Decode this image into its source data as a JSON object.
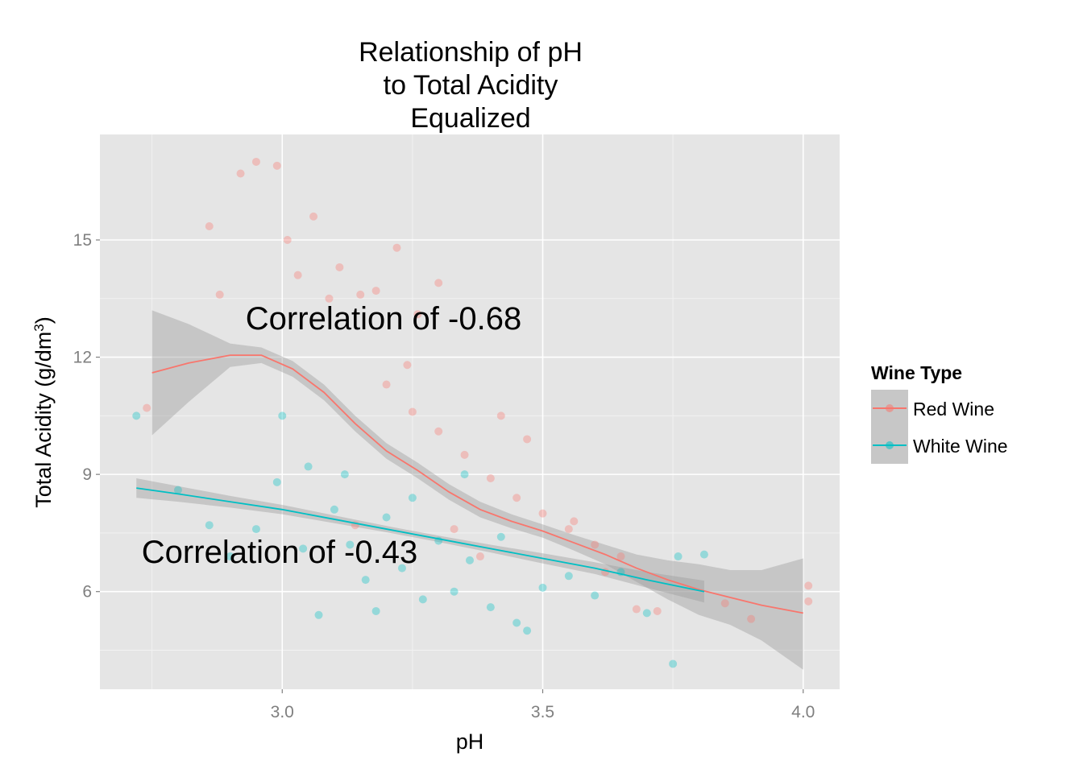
{
  "chart_data": {
    "type": "scatter",
    "title": [
      "Relationship of pH",
      "to Total Acidity",
      "Equalized"
    ],
    "xlabel": "pH",
    "ylabel": "Total Acidity (g/dm³)",
    "xlim": [
      2.65,
      4.07
    ],
    "ylim": [
      3.5,
      17.7
    ],
    "x_ticks": [
      3.0,
      3.5,
      4.0
    ],
    "x_tick_labels": [
      "3.0",
      "3.5",
      "4.0"
    ],
    "y_ticks": [
      6,
      9,
      12,
      15
    ],
    "y_tick_labels": [
      "6",
      "9",
      "12",
      "15"
    ],
    "grid": true,
    "panel_background": "#e5e5e5",
    "legend": {
      "title": "Wine Type",
      "position": "right",
      "entries": [
        "Red Wine",
        "White Wine"
      ]
    },
    "annotations": [
      {
        "text": "Correlation of -0.68",
        "x": 3.2,
        "y": 12.9
      },
      {
        "text": "Correlation of -0.43",
        "x": 3.0,
        "y": 6.9
      }
    ],
    "series": [
      {
        "name": "Red Wine",
        "color": "#f8766d",
        "point_alpha": 0.35,
        "points_sample": [
          [
            2.74,
            10.7
          ],
          [
            2.86,
            15.35
          ],
          [
            2.88,
            13.6
          ],
          [
            2.92,
            16.7
          ],
          [
            2.95,
            17.0
          ],
          [
            2.99,
            16.9
          ],
          [
            3.01,
            15.0
          ],
          [
            3.03,
            14.1
          ],
          [
            3.06,
            15.6
          ],
          [
            3.09,
            13.5
          ],
          [
            3.11,
            14.3
          ],
          [
            3.15,
            13.6
          ],
          [
            3.18,
            13.7
          ],
          [
            3.22,
            14.8
          ],
          [
            3.26,
            13.1
          ],
          [
            3.3,
            13.9
          ],
          [
            3.2,
            11.3
          ],
          [
            3.25,
            10.6
          ],
          [
            3.3,
            10.1
          ],
          [
            3.35,
            9.5
          ],
          [
            3.4,
            8.9
          ],
          [
            3.45,
            8.4
          ],
          [
            3.5,
            8.0
          ],
          [
            3.55,
            7.6
          ],
          [
            3.6,
            7.2
          ],
          [
            3.65,
            6.9
          ],
          [
            3.68,
            5.55
          ],
          [
            3.72,
            5.5
          ],
          [
            3.85,
            5.7
          ],
          [
            3.9,
            5.3
          ],
          [
            4.01,
            6.15
          ],
          [
            4.01,
            5.75
          ],
          [
            3.56,
            7.8
          ],
          [
            3.62,
            6.5
          ],
          [
            3.33,
            7.6
          ],
          [
            3.38,
            6.9
          ],
          [
            3.14,
            7.7
          ],
          [
            3.24,
            11.8
          ],
          [
            3.42,
            10.5
          ],
          [
            3.47,
            9.9
          ]
        ],
        "smooth_line": [
          [
            2.75,
            11.6
          ],
          [
            2.82,
            11.85
          ],
          [
            2.9,
            12.05
          ],
          [
            2.96,
            12.05
          ],
          [
            3.02,
            11.7
          ],
          [
            3.08,
            11.1
          ],
          [
            3.14,
            10.3
          ],
          [
            3.2,
            9.6
          ],
          [
            3.26,
            9.1
          ],
          [
            3.32,
            8.55
          ],
          [
            3.38,
            8.1
          ],
          [
            3.44,
            7.8
          ],
          [
            3.5,
            7.55
          ],
          [
            3.56,
            7.25
          ],
          [
            3.62,
            6.95
          ],
          [
            3.68,
            6.6
          ],
          [
            3.74,
            6.3
          ],
          [
            3.8,
            6.05
          ],
          [
            3.86,
            5.85
          ],
          [
            3.92,
            5.65
          ],
          [
            4.0,
            5.45
          ]
        ],
        "ci_upper": [
          [
            2.75,
            13.2
          ],
          [
            2.82,
            12.85
          ],
          [
            2.9,
            12.35
          ],
          [
            2.96,
            12.25
          ],
          [
            3.02,
            11.9
          ],
          [
            3.08,
            11.3
          ],
          [
            3.14,
            10.5
          ],
          [
            3.2,
            9.8
          ],
          [
            3.26,
            9.3
          ],
          [
            3.32,
            8.75
          ],
          [
            3.38,
            8.3
          ],
          [
            3.44,
            7.98
          ],
          [
            3.5,
            7.72
          ],
          [
            3.56,
            7.45
          ],
          [
            3.62,
            7.2
          ],
          [
            3.68,
            6.95
          ],
          [
            3.74,
            6.8
          ],
          [
            3.8,
            6.7
          ],
          [
            3.86,
            6.55
          ],
          [
            3.92,
            6.55
          ],
          [
            4.0,
            6.85
          ]
        ],
        "ci_lower": [
          [
            2.75,
            10.0
          ],
          [
            2.82,
            10.85
          ],
          [
            2.9,
            11.75
          ],
          [
            2.96,
            11.85
          ],
          [
            3.02,
            11.5
          ],
          [
            3.08,
            10.9
          ],
          [
            3.14,
            10.1
          ],
          [
            3.2,
            9.4
          ],
          [
            3.26,
            8.9
          ],
          [
            3.32,
            8.35
          ],
          [
            3.38,
            7.9
          ],
          [
            3.44,
            7.62
          ],
          [
            3.5,
            7.38
          ],
          [
            3.56,
            7.05
          ],
          [
            3.62,
            6.7
          ],
          [
            3.68,
            6.25
          ],
          [
            3.74,
            5.8
          ],
          [
            3.8,
            5.4
          ],
          [
            3.86,
            5.15
          ],
          [
            3.92,
            4.75
          ],
          [
            4.0,
            4.0
          ]
        ]
      },
      {
        "name": "White Wine",
        "color": "#00bfc4",
        "point_alpha": 0.35,
        "points_sample": [
          [
            2.72,
            10.5
          ],
          [
            2.8,
            8.6
          ],
          [
            2.86,
            7.7
          ],
          [
            2.9,
            6.9
          ],
          [
            2.95,
            7.6
          ],
          [
            2.99,
            8.8
          ],
          [
            3.0,
            10.5
          ],
          [
            3.04,
            7.1
          ],
          [
            3.07,
            5.4
          ],
          [
            3.1,
            8.1
          ],
          [
            3.13,
            7.2
          ],
          [
            3.16,
            6.3
          ],
          [
            3.18,
            5.5
          ],
          [
            3.2,
            7.9
          ],
          [
            3.23,
            6.6
          ],
          [
            3.27,
            5.8
          ],
          [
            3.3,
            7.3
          ],
          [
            3.33,
            6.0
          ],
          [
            3.36,
            6.8
          ],
          [
            3.4,
            5.6
          ],
          [
            3.45,
            5.2
          ],
          [
            3.47,
            5.0
          ],
          [
            3.5,
            6.1
          ],
          [
            3.55,
            6.4
          ],
          [
            3.6,
            5.9
          ],
          [
            3.65,
            6.5
          ],
          [
            3.7,
            5.45
          ],
          [
            3.75,
            4.15
          ],
          [
            3.76,
            6.9
          ],
          [
            3.81,
            6.95
          ],
          [
            3.05,
            9.2
          ],
          [
            3.12,
            9.0
          ],
          [
            3.25,
            8.4
          ],
          [
            3.35,
            9.0
          ],
          [
            3.42,
            7.4
          ]
        ],
        "smooth_line": [
          [
            2.72,
            8.65
          ],
          [
            2.8,
            8.5
          ],
          [
            2.9,
            8.3
          ],
          [
            3.0,
            8.1
          ],
          [
            3.1,
            7.85
          ],
          [
            3.2,
            7.6
          ],
          [
            3.3,
            7.35
          ],
          [
            3.4,
            7.1
          ],
          [
            3.5,
            6.85
          ],
          [
            3.6,
            6.6
          ],
          [
            3.7,
            6.3
          ],
          [
            3.81,
            6.0
          ]
        ],
        "ci_upper": [
          [
            2.72,
            8.9
          ],
          [
            2.8,
            8.7
          ],
          [
            2.9,
            8.45
          ],
          [
            3.0,
            8.22
          ],
          [
            3.1,
            7.95
          ],
          [
            3.2,
            7.68
          ],
          [
            3.3,
            7.43
          ],
          [
            3.4,
            7.2
          ],
          [
            3.5,
            6.98
          ],
          [
            3.6,
            6.75
          ],
          [
            3.7,
            6.5
          ],
          [
            3.81,
            6.28
          ]
        ],
        "ci_lower": [
          [
            2.72,
            8.4
          ],
          [
            2.8,
            8.3
          ],
          [
            2.9,
            8.15
          ],
          [
            3.0,
            7.98
          ],
          [
            3.1,
            7.75
          ],
          [
            3.2,
            7.52
          ],
          [
            3.3,
            7.27
          ],
          [
            3.4,
            7.0
          ],
          [
            3.5,
            6.72
          ],
          [
            3.6,
            6.45
          ],
          [
            3.7,
            6.1
          ],
          [
            3.81,
            5.72
          ]
        ]
      }
    ]
  }
}
